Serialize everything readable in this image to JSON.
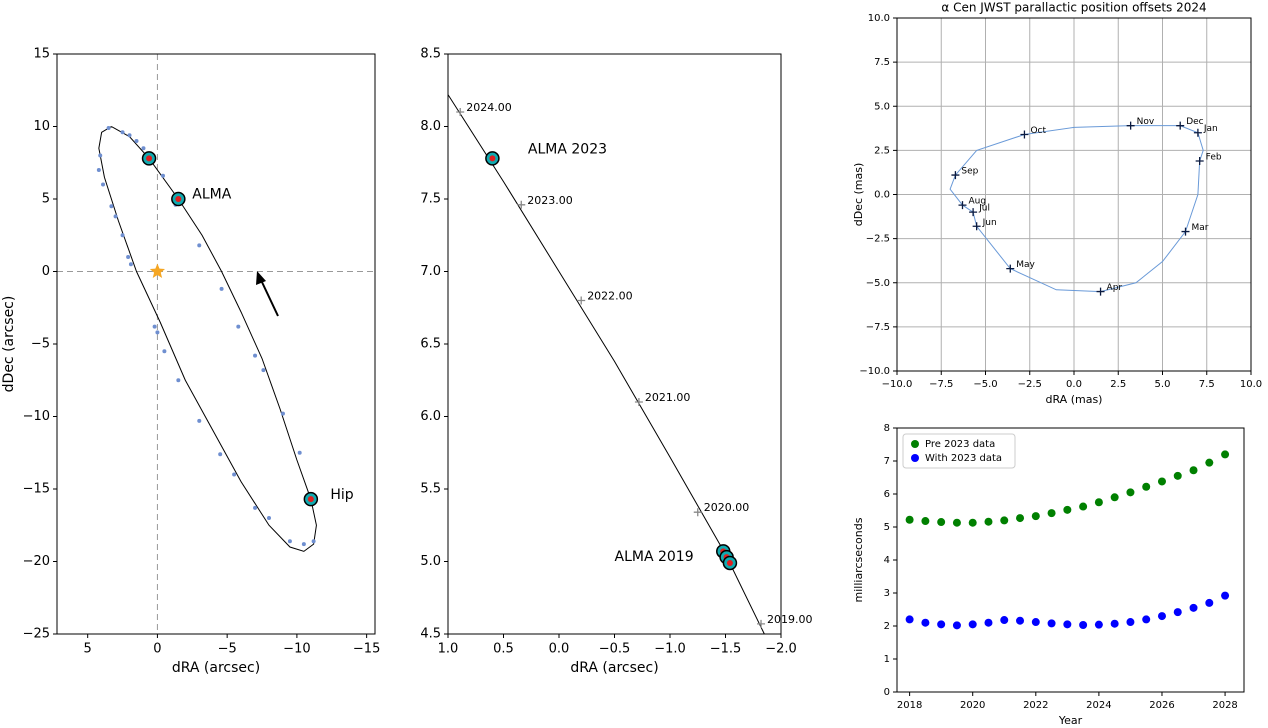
{
  "chart_data": [
    {
      "type": "scatter",
      "xlabel": "dRA (arcsec)",
      "ylabel": "dDec (arcsec)",
      "xlim": [
        7.2,
        -15.6
      ],
      "ylim": [
        -25,
        15
      ],
      "xticks": [
        5,
        0,
        {
          "value": -5,
          "label": "−5"
        },
        {
          "value": -10,
          "label": "−10"
        },
        {
          "value": -15,
          "label": "−15"
        }
      ],
      "yticks": [
        {
          "value": -25,
          "label": "−25"
        },
        {
          "value": -20,
          "label": "−20"
        },
        {
          "value": -15,
          "label": "−15"
        },
        {
          "value": -10,
          "label": "−10"
        },
        {
          "value": -5,
          "label": "−5"
        },
        0,
        5,
        10,
        15
      ],
      "zero_lines": true,
      "grid": false,
      "series": [
        {
          "marker": "line",
          "color": "#000000",
          "x": [
            3.3,
            2.0,
            0.6,
            -1.5,
            -3.2,
            -4.6,
            -6,
            -7.5,
            -8.8,
            -10,
            -11,
            -11.4,
            -11.2,
            -10.5,
            -9.5,
            -8,
            -6,
            -4,
            -2,
            -0.2,
            1.5,
            2.8,
            3.8,
            4.2,
            4.0,
            3.3
          ],
          "y": [
            10.0,
            9.3,
            7.8,
            5.0,
            2.5,
            0,
            -2.8,
            -6,
            -9.5,
            -13,
            -15.7,
            -17.5,
            -18.8,
            -19.3,
            -19,
            -17.5,
            -14.5,
            -11,
            -7.5,
            -3.5,
            0,
            3.5,
            6.5,
            8.5,
            9.6,
            10.0
          ]
        },
        {
          "marker": "dot",
          "color": "#6f8fd0",
          "x": [
            3.5,
            2.5,
            2.0,
            1.5,
            1.0,
            4.1,
            4.2,
            3.9,
            3.3,
            3.0,
            2.5,
            2.1,
            1.9,
            0.2,
            0.0,
            -0.5,
            -1.5,
            -3.0,
            -4.5,
            -5.5,
            -7.0,
            -8.0,
            -9.5,
            -10.5,
            -11.2,
            -10.2,
            -9.0,
            -7.6,
            -7.0,
            -5.8,
            -4.6,
            -3.0,
            -1.3,
            -0.4
          ],
          "y": [
            9.9,
            9.6,
            9.4,
            9.0,
            8.5,
            8.0,
            7.0,
            6.0,
            4.5,
            3.8,
            2.5,
            1.0,
            0.5,
            -3.8,
            -4.2,
            -5.5,
            -7.5,
            -10.3,
            -12.6,
            -14.0,
            -16.3,
            -17.0,
            -18.6,
            -18.8,
            -18.6,
            -12.5,
            -9.8,
            -6.8,
            -5.8,
            -3.8,
            -1.2,
            1.8,
            4.6,
            6.6
          ]
        },
        {
          "marker": "ring",
          "color": "#11aab0",
          "x": [
            0.6,
            -1.5,
            -11.0
          ],
          "y": [
            7.8,
            5.0,
            -15.7
          ]
        },
        {
          "marker": "star",
          "color": "#f5a623",
          "x": [
            0
          ],
          "y": [
            0
          ]
        }
      ],
      "annotations": [
        {
          "text": "ALMA",
          "x": -2.5,
          "y": 5.3,
          "color": "#800080"
        },
        {
          "text": "Hip",
          "x": -12.4,
          "y": -15.4,
          "color": "#000080"
        }
      ]
    },
    {
      "type": "scatter",
      "xlabel": "dRA (arcsec)",
      "xlim": [
        1.0,
        -2.0
      ],
      "ylim": [
        4.5,
        8.5
      ],
      "xticks": [
        {
          "value": 1.0,
          "label": "1.0"
        },
        0.5,
        {
          "value": 0,
          "label": "0.0"
        },
        {
          "value": -0.5,
          "label": "−0.5"
        },
        {
          "value": -1.0,
          "label": "−1.0"
        },
        {
          "value": -1.5,
          "label": "−1.5"
        },
        {
          "value": -2.0,
          "label": "−2.0"
        }
      ],
      "yticks": [
        4.5,
        {
          "value": 5.0,
          "label": "5.0"
        },
        5.5,
        {
          "value": 6.0,
          "label": "6.0"
        },
        6.5,
        {
          "value": 7.0,
          "label": "7.0"
        },
        7.5,
        {
          "value": 8.0,
          "label": "8.0"
        },
        8.5
      ],
      "grid": false,
      "series": [
        {
          "marker": "line",
          "color": "#000000",
          "x": [
            1.0,
            0.5,
            0.0,
            -0.5,
            -1.0,
            -1.5,
            -1.85
          ],
          "y": [
            8.22,
            7.62,
            7.0,
            6.38,
            5.72,
            5.05,
            4.5
          ]
        },
        {
          "marker": "plus",
          "color": "#888888",
          "x": [
            0.89,
            0.34,
            -0.2,
            -0.72,
            -1.25,
            -1.82
          ],
          "y": [
            8.1,
            7.46,
            6.8,
            6.1,
            5.34,
            4.57
          ],
          "labels": [
            "2024.00",
            "2023.00",
            "2022.00",
            "2021.00",
            "2020.00",
            "2019.00"
          ]
        },
        {
          "marker": "ring",
          "color": "#11aab0",
          "x": [
            0.6,
            -1.48,
            -1.51,
            -1.54
          ],
          "y": [
            7.78,
            5.07,
            5.03,
            4.99
          ]
        }
      ],
      "annotations": [
        {
          "text": "ALMA 2023",
          "x": 0.28,
          "y": 7.84,
          "color": "#800080"
        },
        {
          "text": "ALMA 2019",
          "x": -0.5,
          "y": 5.03,
          "color": "#800080"
        }
      ]
    },
    {
      "type": "scatter",
      "title": "α Cen JWST parallactic position offsets 2024",
      "xlabel": "dRA (mas)",
      "ylabel": "dDec (mas)",
      "xlim": [
        -10,
        10
      ],
      "ylim": [
        -10,
        10
      ],
      "xticks": [
        {
          "value": -10,
          "label": "−10.0"
        },
        {
          "value": -7.5,
          "label": "−7.5"
        },
        {
          "value": -5,
          "label": "−5.0"
        },
        {
          "value": -2.5,
          "label": "−2.5"
        },
        {
          "value": 0,
          "label": "0.0"
        },
        2.5,
        {
          "value": 5,
          "label": "5.0"
        },
        7.5,
        {
          "value": 10,
          "label": "10.0"
        }
      ],
      "yticks": [
        {
          "value": -10,
          "label": "−10.0"
        },
        {
          "value": -7.5,
          "label": "−7.5"
        },
        {
          "value": -5,
          "label": "−5.0"
        },
        {
          "value": -2.5,
          "label": "−2.5"
        },
        {
          "value": 0,
          "label": "0.0"
        },
        2.5,
        {
          "value": 5,
          "label": "5.0"
        },
        7.5,
        {
          "value": 10,
          "label": "10.0"
        }
      ],
      "grid": true,
      "series": [
        {
          "marker": "line",
          "color": "#6a9ad8",
          "x": [
            7.0,
            7.3,
            7.1,
            7.0,
            6.3,
            5.0,
            3.5,
            1.5,
            -1.0,
            -3.6,
            -5.5,
            -5.7,
            -6.3,
            -7.0,
            -6.7,
            -5.5,
            -2.8,
            0.0,
            3.2,
            6.0,
            7.0
          ],
          "y": [
            3.5,
            2.5,
            1.9,
            0.0,
            -2.1,
            -3.8,
            -5.0,
            -5.5,
            -5.4,
            -4.2,
            -1.8,
            -1.0,
            -0.6,
            0.3,
            1.1,
            2.5,
            3.4,
            3.8,
            3.9,
            3.9,
            3.5
          ]
        },
        {
          "marker": "plus",
          "color": "#0a1a40",
          "x": [
            7.0,
            7.1,
            6.3,
            1.5,
            -3.6,
            -5.5,
            -5.7,
            -6.3,
            -6.7,
            -2.8,
            3.2,
            6.0
          ],
          "y": [
            3.5,
            1.9,
            -2.1,
            -5.5,
            -4.2,
            -1.8,
            -1.0,
            -0.6,
            1.1,
            3.4,
            3.9,
            3.9
          ],
          "labels": [
            "Jan",
            "Feb",
            "Mar",
            "Apr",
            "May",
            "Jun",
            "Jul",
            "Aug",
            "Sep",
            "Oct",
            "Nov",
            "Dec"
          ]
        }
      ]
    },
    {
      "type": "scatter",
      "xlabel": "Year",
      "ylabel": "milliarcseconds",
      "xlim": [
        2017.6,
        2028.6
      ],
      "ylim": [
        0,
        8
      ],
      "xticks": [
        2018,
        2020,
        2022,
        2024,
        2026,
        2028
      ],
      "yticks": [
        0,
        1,
        2,
        3,
        4,
        5,
        6,
        7,
        8
      ],
      "grid": false,
      "legend": "upper left",
      "series": [
        {
          "name": "Pre 2023 data",
          "marker": "dot",
          "color": "#008000",
          "x": [
            2018,
            2018.5,
            2019,
            2019.5,
            2020,
            2020.5,
            2021,
            2021.5,
            2022,
            2022.5,
            2023,
            2023.5,
            2024,
            2024.5,
            2025,
            2025.5,
            2026,
            2026.5,
            2027,
            2027.5,
            2028
          ],
          "y": [
            5.22,
            5.18,
            5.15,
            5.13,
            5.13,
            5.16,
            5.2,
            5.27,
            5.33,
            5.42,
            5.52,
            5.62,
            5.75,
            5.9,
            6.05,
            6.22,
            6.38,
            6.55,
            6.72,
            6.95,
            7.2
          ]
        },
        {
          "name": "With 2023 data",
          "marker": "dot",
          "color": "#0000ff",
          "x": [
            2018,
            2018.5,
            2019,
            2019.5,
            2020,
            2020.5,
            2021,
            2021.5,
            2022,
            2022.5,
            2023,
            2023.5,
            2024,
            2024.5,
            2025,
            2025.5,
            2026,
            2026.5,
            2027,
            2027.5,
            2028
          ],
          "y": [
            2.2,
            2.1,
            2.05,
            2.02,
            2.05,
            2.1,
            2.18,
            2.16,
            2.12,
            2.08,
            2.05,
            2.03,
            2.04,
            2.07,
            2.12,
            2.2,
            2.3,
            2.42,
            2.55,
            2.7,
            2.92
          ]
        }
      ]
    }
  ]
}
